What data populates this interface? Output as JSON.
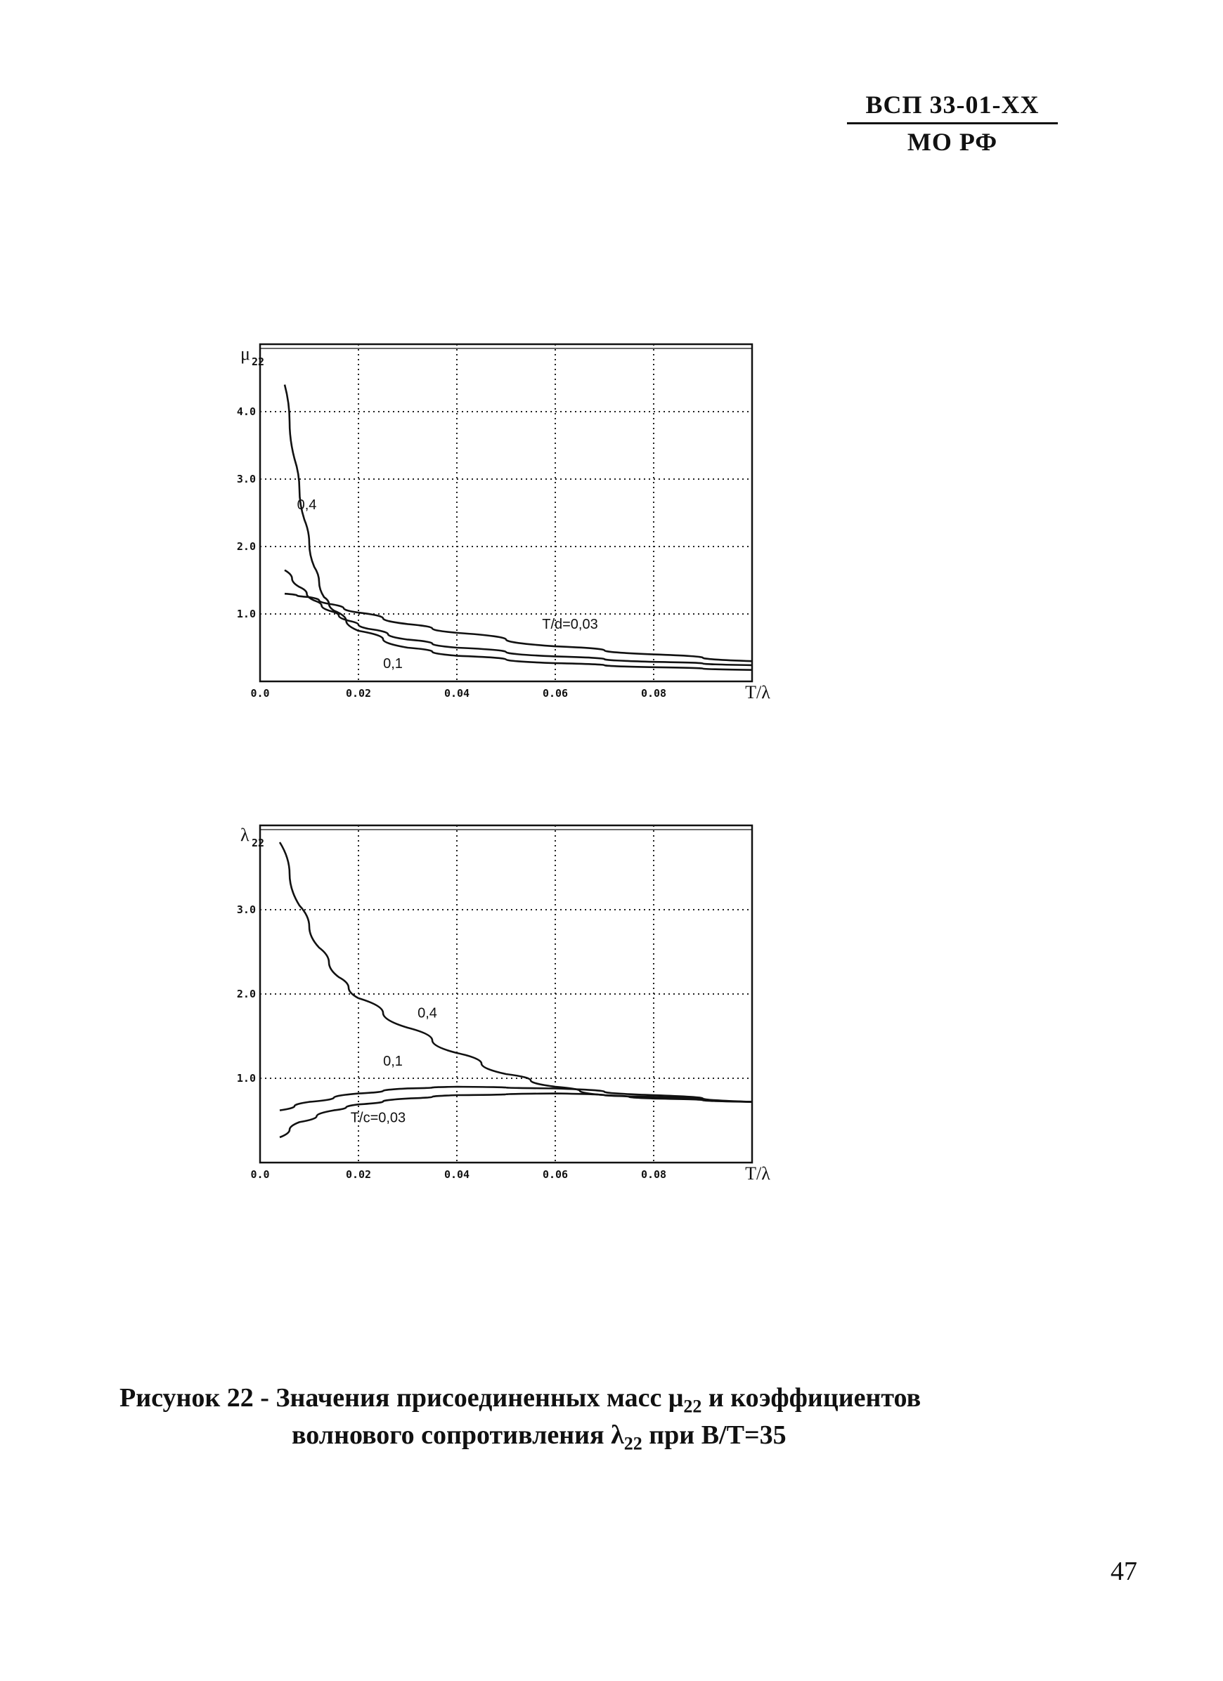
{
  "header": {
    "code": "ВСП 33-01-XX",
    "org": "МО РФ"
  },
  "caption": {
    "prefix": "Рисунок 22 - Значения присоединенных масс μ",
    "sub1": "22",
    "mid": " и коэффициентов",
    "line2_pre": "волнового сопротивления λ",
    "sub2": "22",
    "line2_post": " при B/T=35"
  },
  "page_number": "47",
  "chart_data": [
    {
      "type": "line",
      "id": "mu",
      "ylabel": "μ",
      "ylabel_sub": "22",
      "xlabel": "T/λ",
      "xlim": [
        0,
        0.1
      ],
      "ylim": [
        0,
        5
      ],
      "xticks": [
        0,
        0.02,
        0.04,
        0.06,
        0.08
      ],
      "xtick_labels": [
        "0.0",
        "0.02",
        "0.04",
        "0.06",
        "0.08"
      ],
      "yticks": [
        1,
        2,
        3,
        4
      ],
      "ytick_labels": [
        "1.0",
        "2.0",
        "3.0",
        "4.0"
      ],
      "grid": true,
      "series": [
        {
          "name": "0,4",
          "x": [
            0.005,
            0.007,
            0.009,
            0.011,
            0.013,
            0.015,
            0.02,
            0.03,
            0.04,
            0.06,
            0.08,
            0.1
          ],
          "values": [
            4.4,
            3.3,
            2.4,
            1.7,
            1.25,
            1.05,
            0.75,
            0.5,
            0.38,
            0.27,
            0.21,
            0.17
          ]
        },
        {
          "name": "0,1",
          "x": [
            0.005,
            0.008,
            0.011,
            0.014,
            0.018,
            0.022,
            0.03,
            0.04,
            0.06,
            0.08,
            0.1
          ],
          "values": [
            1.65,
            1.4,
            1.2,
            1.05,
            0.9,
            0.78,
            0.62,
            0.5,
            0.37,
            0.29,
            0.24
          ]
        },
        {
          "name": "T/d=0,03",
          "x": [
            0.005,
            0.01,
            0.014,
            0.02,
            0.03,
            0.04,
            0.06,
            0.08,
            0.1
          ],
          "values": [
            1.3,
            1.25,
            1.15,
            1.02,
            0.85,
            0.72,
            0.52,
            0.4,
            0.3
          ]
        }
      ],
      "labels": [
        {
          "text": "0,4",
          "x": 0.0095,
          "y": 2.55
        },
        {
          "text": "0,1",
          "x": 0.027,
          "y": 0.2
        },
        {
          "text": "T/d=0,03",
          "x": 0.063,
          "y": 0.78
        }
      ]
    },
    {
      "type": "line",
      "id": "lambda",
      "ylabel": "λ",
      "ylabel_sub": "22",
      "xlabel": "T/λ",
      "xlim": [
        0,
        0.1
      ],
      "ylim": [
        0,
        4
      ],
      "xticks": [
        0,
        0.02,
        0.04,
        0.06,
        0.08
      ],
      "xtick_labels": [
        "0.0",
        "0.02",
        "0.04",
        "0.06",
        "0.08"
      ],
      "yticks": [
        1,
        2,
        3
      ],
      "ytick_labels": [
        "1.0",
        "2.0",
        "3.0"
      ],
      "grid": true,
      "series": [
        {
          "name": "0,4",
          "x": [
            0.004,
            0.008,
            0.012,
            0.016,
            0.02,
            0.03,
            0.04,
            0.05,
            0.06,
            0.07,
            0.08,
            0.1
          ],
          "values": [
            3.8,
            3.05,
            2.55,
            2.2,
            1.95,
            1.6,
            1.3,
            1.05,
            0.9,
            0.8,
            0.76,
            0.72
          ]
        },
        {
          "name": "0,1",
          "x": [
            0.004,
            0.01,
            0.02,
            0.03,
            0.04,
            0.06,
            0.08,
            0.1
          ],
          "values": [
            0.62,
            0.72,
            0.82,
            0.88,
            0.9,
            0.88,
            0.8,
            0.72
          ]
        },
        {
          "name": "T/c=0,03",
          "x": [
            0.004,
            0.008,
            0.015,
            0.02,
            0.03,
            0.04,
            0.06,
            0.08,
            0.1
          ],
          "values": [
            0.3,
            0.48,
            0.62,
            0.69,
            0.76,
            0.8,
            0.82,
            0.78,
            0.72
          ]
        }
      ],
      "labels": [
        {
          "text": "0,4",
          "x": 0.034,
          "y": 1.72
        },
        {
          "text": "0,1",
          "x": 0.027,
          "y": 1.15
        },
        {
          "text": "T/c=0,03",
          "x": 0.024,
          "y": 0.48
        }
      ]
    }
  ]
}
